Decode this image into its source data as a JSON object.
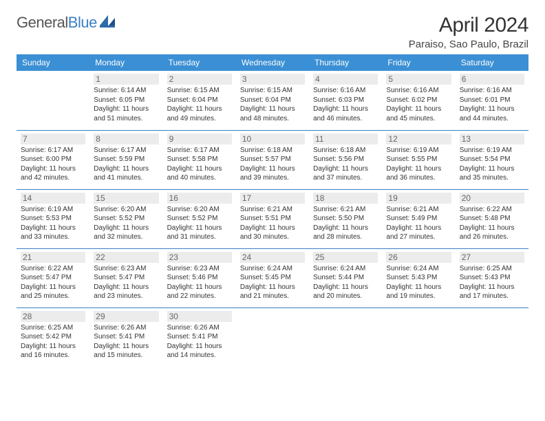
{
  "logo": {
    "text_part1": "General",
    "text_part2": "Blue"
  },
  "title": "April 2024",
  "location": "Paraiso, Sao Paulo, Brazil",
  "colors": {
    "header_bg": "#3b8fd4",
    "header_text": "#ffffff",
    "row_divider": "#3b7fc4",
    "daynum_bg": "#ececec",
    "body_text": "#333333",
    "logo_blue": "#3b7fc4"
  },
  "weekdays": [
    "Sunday",
    "Monday",
    "Tuesday",
    "Wednesday",
    "Thursday",
    "Friday",
    "Saturday"
  ],
  "weeks": [
    [
      {
        "day": "",
        "sunrise": "",
        "sunset": "",
        "daylight": "",
        "empty": true
      },
      {
        "day": "1",
        "sunrise": "Sunrise: 6:14 AM",
        "sunset": "Sunset: 6:05 PM",
        "daylight": "Daylight: 11 hours and 51 minutes."
      },
      {
        "day": "2",
        "sunrise": "Sunrise: 6:15 AM",
        "sunset": "Sunset: 6:04 PM",
        "daylight": "Daylight: 11 hours and 49 minutes."
      },
      {
        "day": "3",
        "sunrise": "Sunrise: 6:15 AM",
        "sunset": "Sunset: 6:04 PM",
        "daylight": "Daylight: 11 hours and 48 minutes."
      },
      {
        "day": "4",
        "sunrise": "Sunrise: 6:16 AM",
        "sunset": "Sunset: 6:03 PM",
        "daylight": "Daylight: 11 hours and 46 minutes."
      },
      {
        "day": "5",
        "sunrise": "Sunrise: 6:16 AM",
        "sunset": "Sunset: 6:02 PM",
        "daylight": "Daylight: 11 hours and 45 minutes."
      },
      {
        "day": "6",
        "sunrise": "Sunrise: 6:16 AM",
        "sunset": "Sunset: 6:01 PM",
        "daylight": "Daylight: 11 hours and 44 minutes."
      }
    ],
    [
      {
        "day": "7",
        "sunrise": "Sunrise: 6:17 AM",
        "sunset": "Sunset: 6:00 PM",
        "daylight": "Daylight: 11 hours and 42 minutes."
      },
      {
        "day": "8",
        "sunrise": "Sunrise: 6:17 AM",
        "sunset": "Sunset: 5:59 PM",
        "daylight": "Daylight: 11 hours and 41 minutes."
      },
      {
        "day": "9",
        "sunrise": "Sunrise: 6:17 AM",
        "sunset": "Sunset: 5:58 PM",
        "daylight": "Daylight: 11 hours and 40 minutes."
      },
      {
        "day": "10",
        "sunrise": "Sunrise: 6:18 AM",
        "sunset": "Sunset: 5:57 PM",
        "daylight": "Daylight: 11 hours and 39 minutes."
      },
      {
        "day": "11",
        "sunrise": "Sunrise: 6:18 AM",
        "sunset": "Sunset: 5:56 PM",
        "daylight": "Daylight: 11 hours and 37 minutes."
      },
      {
        "day": "12",
        "sunrise": "Sunrise: 6:19 AM",
        "sunset": "Sunset: 5:55 PM",
        "daylight": "Daylight: 11 hours and 36 minutes."
      },
      {
        "day": "13",
        "sunrise": "Sunrise: 6:19 AM",
        "sunset": "Sunset: 5:54 PM",
        "daylight": "Daylight: 11 hours and 35 minutes."
      }
    ],
    [
      {
        "day": "14",
        "sunrise": "Sunrise: 6:19 AM",
        "sunset": "Sunset: 5:53 PM",
        "daylight": "Daylight: 11 hours and 33 minutes."
      },
      {
        "day": "15",
        "sunrise": "Sunrise: 6:20 AM",
        "sunset": "Sunset: 5:52 PM",
        "daylight": "Daylight: 11 hours and 32 minutes."
      },
      {
        "day": "16",
        "sunrise": "Sunrise: 6:20 AM",
        "sunset": "Sunset: 5:52 PM",
        "daylight": "Daylight: 11 hours and 31 minutes."
      },
      {
        "day": "17",
        "sunrise": "Sunrise: 6:21 AM",
        "sunset": "Sunset: 5:51 PM",
        "daylight": "Daylight: 11 hours and 30 minutes."
      },
      {
        "day": "18",
        "sunrise": "Sunrise: 6:21 AM",
        "sunset": "Sunset: 5:50 PM",
        "daylight": "Daylight: 11 hours and 28 minutes."
      },
      {
        "day": "19",
        "sunrise": "Sunrise: 6:21 AM",
        "sunset": "Sunset: 5:49 PM",
        "daylight": "Daylight: 11 hours and 27 minutes."
      },
      {
        "day": "20",
        "sunrise": "Sunrise: 6:22 AM",
        "sunset": "Sunset: 5:48 PM",
        "daylight": "Daylight: 11 hours and 26 minutes."
      }
    ],
    [
      {
        "day": "21",
        "sunrise": "Sunrise: 6:22 AM",
        "sunset": "Sunset: 5:47 PM",
        "daylight": "Daylight: 11 hours and 25 minutes."
      },
      {
        "day": "22",
        "sunrise": "Sunrise: 6:23 AM",
        "sunset": "Sunset: 5:47 PM",
        "daylight": "Daylight: 11 hours and 23 minutes."
      },
      {
        "day": "23",
        "sunrise": "Sunrise: 6:23 AM",
        "sunset": "Sunset: 5:46 PM",
        "daylight": "Daylight: 11 hours and 22 minutes."
      },
      {
        "day": "24",
        "sunrise": "Sunrise: 6:24 AM",
        "sunset": "Sunset: 5:45 PM",
        "daylight": "Daylight: 11 hours and 21 minutes."
      },
      {
        "day": "25",
        "sunrise": "Sunrise: 6:24 AM",
        "sunset": "Sunset: 5:44 PM",
        "daylight": "Daylight: 11 hours and 20 minutes."
      },
      {
        "day": "26",
        "sunrise": "Sunrise: 6:24 AM",
        "sunset": "Sunset: 5:43 PM",
        "daylight": "Daylight: 11 hours and 19 minutes."
      },
      {
        "day": "27",
        "sunrise": "Sunrise: 6:25 AM",
        "sunset": "Sunset: 5:43 PM",
        "daylight": "Daylight: 11 hours and 17 minutes."
      }
    ],
    [
      {
        "day": "28",
        "sunrise": "Sunrise: 6:25 AM",
        "sunset": "Sunset: 5:42 PM",
        "daylight": "Daylight: 11 hours and 16 minutes."
      },
      {
        "day": "29",
        "sunrise": "Sunrise: 6:26 AM",
        "sunset": "Sunset: 5:41 PM",
        "daylight": "Daylight: 11 hours and 15 minutes."
      },
      {
        "day": "30",
        "sunrise": "Sunrise: 6:26 AM",
        "sunset": "Sunset: 5:41 PM",
        "daylight": "Daylight: 11 hours and 14 minutes."
      },
      {
        "day": "",
        "sunrise": "",
        "sunset": "",
        "daylight": "",
        "empty": true
      },
      {
        "day": "",
        "sunrise": "",
        "sunset": "",
        "daylight": "",
        "empty": true
      },
      {
        "day": "",
        "sunrise": "",
        "sunset": "",
        "daylight": "",
        "empty": true
      },
      {
        "day": "",
        "sunrise": "",
        "sunset": "",
        "daylight": "",
        "empty": true
      }
    ]
  ]
}
